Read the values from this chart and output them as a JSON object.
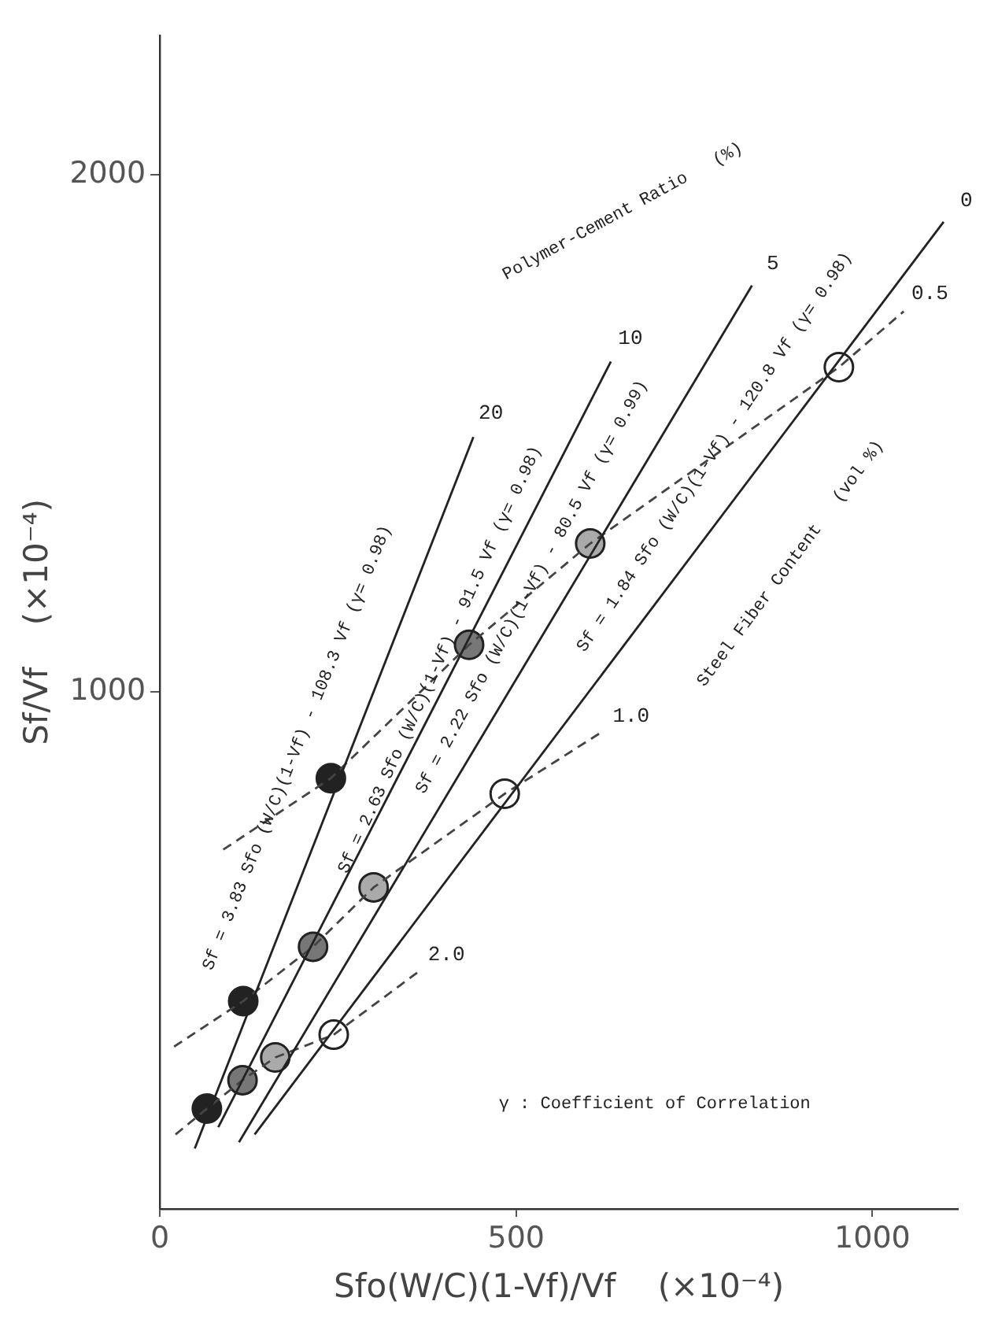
{
  "chart_data": {
    "type": "scatter",
    "xlabel": "Sfo(W/C)(1-Vf)/Vf    (×10⁻⁴)",
    "ylabel": "Sf/Vf    (×10⁻⁴)",
    "xlim": [
      0,
      1120
    ],
    "ylim": [
      0,
      2270
    ],
    "xticks": [
      0,
      500,
      1000
    ],
    "yticks": [
      1000,
      2000
    ],
    "grid": false,
    "legend": false,
    "marker": "circle",
    "series": [
      {
        "type": "line",
        "name": "20",
        "color": "#222222",
        "line_style": "solid",
        "marker": "none",
        "x": [
          49,
          440
        ],
        "values": [
          117,
          1493
        ]
      },
      {
        "type": "line",
        "name": "10",
        "color": "#222222",
        "line_style": "solid",
        "marker": "none",
        "x": [
          82,
          633
        ],
        "values": [
          158,
          1639
        ]
      },
      {
        "type": "line",
        "name": "5",
        "color": "#222222",
        "line_style": "solid",
        "marker": "none",
        "x": [
          111,
          831
        ],
        "values": [
          129,
          1786
        ]
      },
      {
        "type": "line",
        "name": "0",
        "color": "#222222",
        "line_style": "solid",
        "marker": "none",
        "x": [
          133,
          1100
        ],
        "values": [
          144,
          1909
        ]
      },
      {
        "type": "line",
        "name": "0.5",
        "color": "#444444",
        "line_style": "dashed",
        "marker": "none",
        "x": [
          89,
          240,
          434,
          604,
          953,
          1044
        ],
        "values": [
          695,
          833,
          1091,
          1287,
          1628,
          1736
        ]
      },
      {
        "type": "line",
        "name": "1.0",
        "color": "#444444",
        "line_style": "dashed",
        "marker": "none",
        "x": [
          20,
          117,
          215,
          300,
          484,
          622
        ],
        "values": [
          314,
          402,
          507,
          622,
          803,
          924
        ]
      },
      {
        "type": "line",
        "name": "2.0",
        "color": "#444444",
        "line_style": "dashed",
        "marker": "none",
        "x": [
          22,
          66,
          116,
          162,
          244,
          364
        ],
        "values": [
          144,
          194,
          249,
          293,
          337,
          460
        ]
      },
      {
        "color": "#222222",
        "x": [
          66,
          117,
          240
        ],
        "values": [
          194,
          402,
          833
        ]
      },
      {
        "color": "#777777",
        "x": [
          116,
          215,
          434
        ],
        "values": [
          249,
          507,
          1091
        ]
      },
      {
        "color": "#aaaaaa",
        "x": [
          162,
          300,
          604
        ],
        "values": [
          293,
          622,
          1287
        ]
      },
      {
        "color": "#ffffff",
        "x": [
          244,
          484,
          953
        ],
        "values": [
          337,
          803,
          1628
        ]
      }
    ],
    "annotations": [
      "Sf = 3.83 Sfo (W/C)(1-Vf) - 108.3 Vf (γ= 0.98)",
      "Sf = 2.63 Sfo (W/C)(1-Vf) - 91.5 Vf (γ= 0.98)",
      "Sf = 2.22 Sfo (W/C)(1-Vf) - 80.5 Vf (γ= 0.99)",
      "Sf = 1.84 Sfo (W/C)(1-Vf) - 120.8 Vf (γ= 0.98)",
      "Polymer-Cement Ratio   (%)",
      "Steel Fiber Content   (vol %)",
      "γ : Coefficient of Correlation"
    ]
  }
}
